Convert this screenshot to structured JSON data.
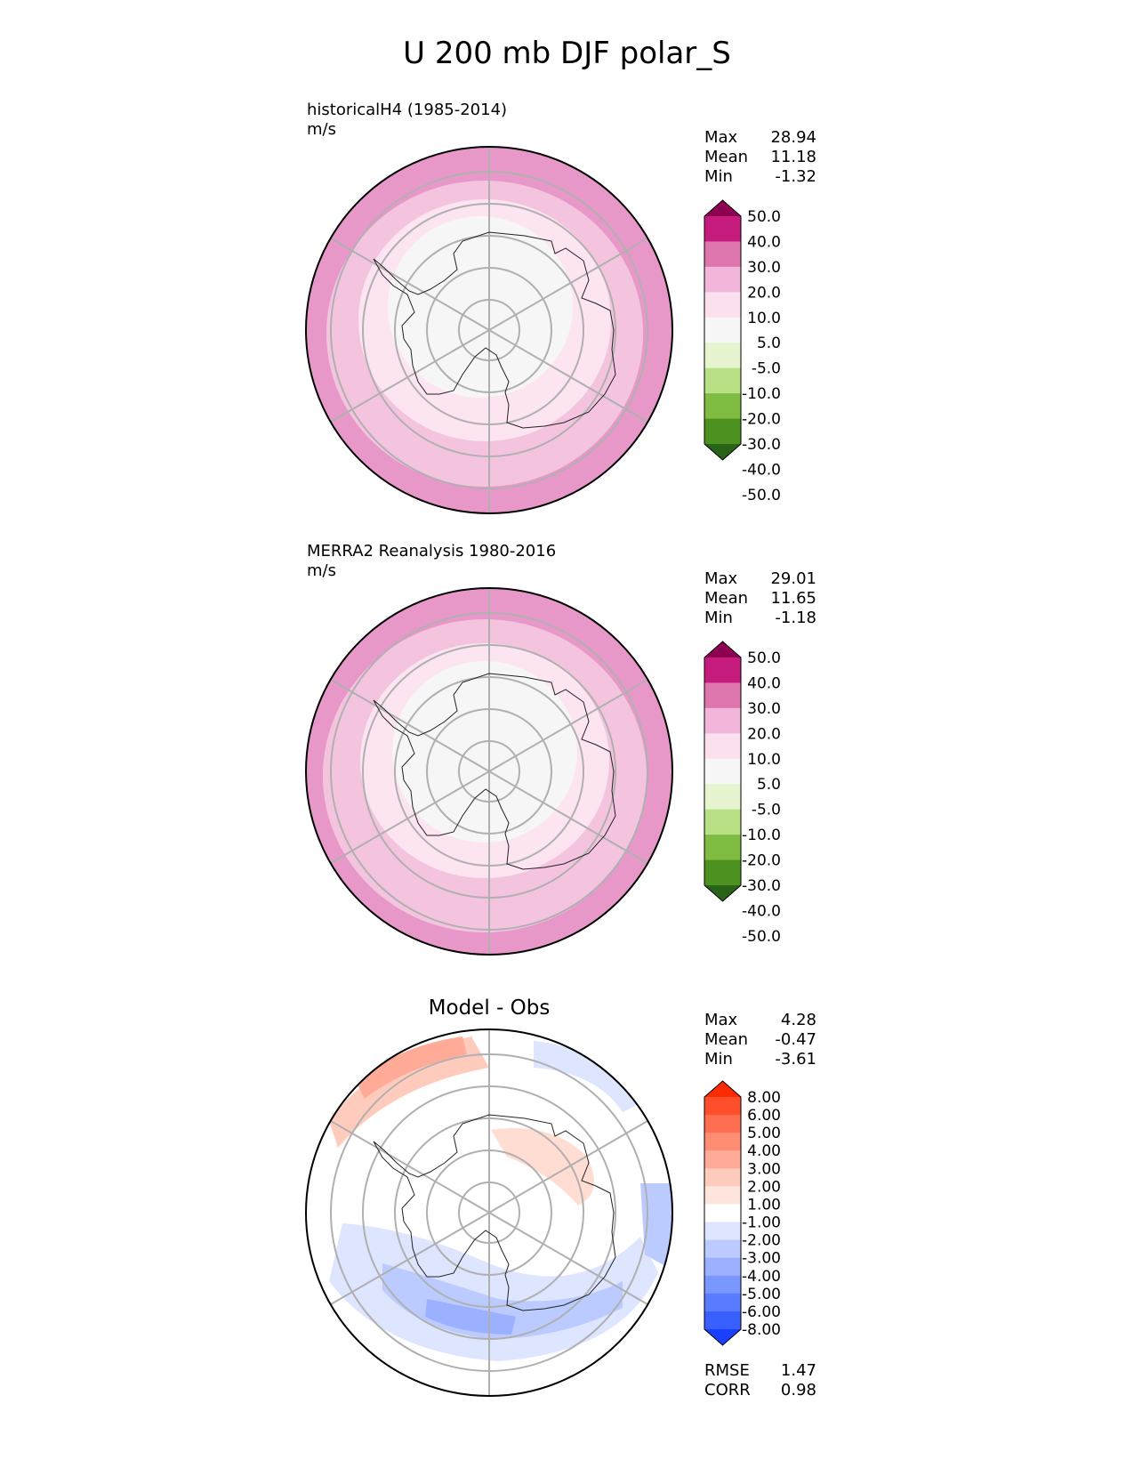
{
  "title": "U 200 mb DJF polar_S",
  "panels": [
    {
      "id": "test",
      "title": "historicalH4 (1985-2014)",
      "units": "m/s",
      "stats": [
        {
          "label": "Max",
          "value": "28.94"
        },
        {
          "label": "Mean",
          "value": "11.18"
        },
        {
          "label": "Min",
          "value": "-1.32"
        }
      ],
      "colorbar": {
        "labels": [
          "50.0",
          "40.0",
          "30.0",
          "20.0",
          "10.0",
          "5.0",
          "-5.0",
          "-10.0",
          "-20.0",
          "-30.0",
          "-40.0",
          "-50.0"
        ],
        "colors": [
          "#8e0152",
          "#c51b7d",
          "#de77ae",
          "#f1b6da",
          "#fde0ef",
          "#f7f7f7",
          "#e6f5d0",
          "#b8e186",
          "#7fbc41",
          "#4d9221",
          "#276419"
        ]
      }
    },
    {
      "id": "ref",
      "title": "MERRA2 Reanalysis 1980-2016",
      "units": "m/s",
      "stats": [
        {
          "label": "Max",
          "value": "29.01"
        },
        {
          "label": "Mean",
          "value": "11.65"
        },
        {
          "label": "Min",
          "value": "-1.18"
        }
      ],
      "colorbar": {
        "labels": [
          "50.0",
          "40.0",
          "30.0",
          "20.0",
          "10.0",
          "5.0",
          "-5.0",
          "-10.0",
          "-20.0",
          "-30.0",
          "-40.0",
          "-50.0"
        ],
        "colors": [
          "#8e0152",
          "#c51b7d",
          "#de77ae",
          "#f1b6da",
          "#fde0ef",
          "#f7f7f7",
          "#e6f5d0",
          "#b8e186",
          "#7fbc41",
          "#4d9221",
          "#276419"
        ]
      }
    },
    {
      "id": "diff",
      "title": "Model - Obs",
      "units": "",
      "stats": [
        {
          "label": "Max",
          "value": "4.28"
        },
        {
          "label": "Mean",
          "value": "-0.47"
        },
        {
          "label": "Min",
          "value": "-3.61"
        }
      ],
      "extra_stats": [
        {
          "label": "RMSE",
          "value": "1.47"
        },
        {
          "label": "CORR",
          "value": "0.98"
        }
      ],
      "colorbar": {
        "labels": [
          "8.00",
          "6.00",
          "5.00",
          "4.00",
          "3.00",
          "2.00",
          "1.00",
          "-1.00",
          "-2.00",
          "-3.00",
          "-4.00",
          "-5.00",
          "-6.00",
          "-8.00"
        ],
        "colors": [
          "#ff2a00",
          "#ff4e2c",
          "#ff6e50",
          "#ff8d74",
          "#ffab98",
          "#ffcbbd",
          "#ffe6dd",
          "#ffffff",
          "#dde5ff",
          "#bccbff",
          "#9bb1ff",
          "#7a96ff",
          "#587bff",
          "#3a5fff",
          "#1a40ff"
        ]
      }
    }
  ]
}
